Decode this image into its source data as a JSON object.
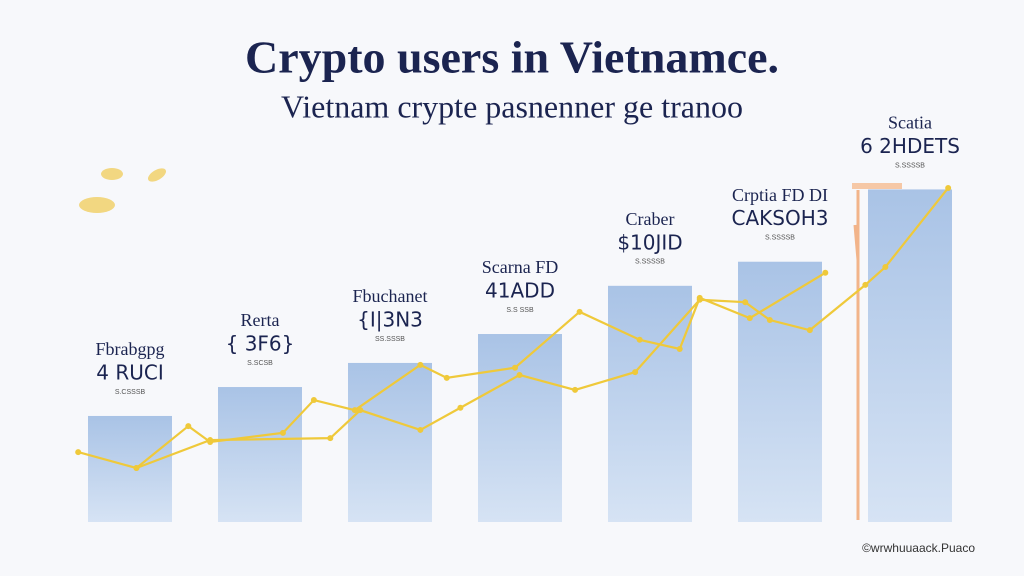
{
  "chart_data": {
    "type": "bar",
    "title": "Crypto users in Vietnamce.",
    "subtitle": "Vietnam crypte pasnenner ge tranoo",
    "categories": [
      "Fbrabgpg",
      "Rerta",
      "Fbuchanet",
      "Scarna FD",
      "Craber",
      "Crptia FD DI",
      "Scatia"
    ],
    "values": [
      22,
      28,
      33,
      39,
      49,
      54,
      69
    ],
    "bar_labels": [
      "4 RUCI",
      "{ 3F6}",
      "{I|3N3",
      "41ADD",
      "$10JID",
      "CAKSOH3",
      "6 2HDETS"
    ],
    "notes": [
      "S.CSSSB",
      "S.SCSB",
      "SS.SSSB",
      "S.S SSB",
      "S.SSSSB",
      "S.SSSSB",
      "S.SSSSB"
    ],
    "color": "#a9c3e6",
    "ylim": [
      0,
      100
    ],
    "xlim": [
      0,
      100
    ],
    "lines": [
      {
        "color": "#efc93a",
        "x": [
          2,
          8.4,
          14.1,
          16.5,
          24.5,
          27.9,
          32.4,
          39.6,
          42.5,
          50,
          57.1,
          63.7,
          68.1,
          70.3,
          75.8,
          84.1
        ],
        "values": [
          14.5,
          11.2,
          19.9,
          16.6,
          18.5,
          25.3,
          23.2,
          32.6,
          29.9,
          32,
          43.6,
          37.8,
          35.9,
          46.5,
          42.3,
          51.7
        ]
      },
      {
        "color": "#efc93a",
        "x": [
          8.4,
          16.5,
          29.7,
          33,
          39.6,
          44,
          50.5,
          56.6,
          63.2,
          70.3,
          75.3,
          78,
          82.4,
          88.5,
          90.7,
          97.6
        ],
        "values": [
          11.2,
          17,
          17.4,
          23.2,
          19.1,
          23.7,
          30.5,
          27.4,
          31.1,
          46.1,
          45.6,
          41.9,
          39.8,
          49.2,
          52.9,
          69.3
        ]
      }
    ],
    "source": "©wrwhuuaack.Puaco"
  }
}
